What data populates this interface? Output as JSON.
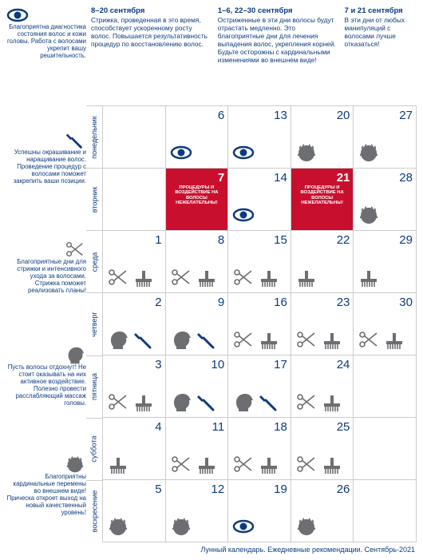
{
  "colors": {
    "primary": "#0b3b7e",
    "red": "#c8102e",
    "iconGray": "#6d6e71",
    "border": "#cccccc"
  },
  "headerNotes": [
    {
      "title": "8–20 сентября",
      "body": "Стрижка, проведенная в это время, способствует ускоренному росту волос. Повышается результативность процедур по восстановлению волос."
    },
    {
      "title": "1–6, 22–30 сентября",
      "body": "Остриженные в эти дни волосы будут отрастать медленно. Это благоприятные дни для лечения выпадения волос, укрепления корней. Будьте осторожны с кардинальными изменениями во внешнем виде!"
    },
    {
      "title": "7 и 21 сентября",
      "body": "В эти дни от любых манипуляций с волосами лучше отказаться!"
    }
  ],
  "legends": [
    {
      "icon": "eye",
      "text": "Благоприятна диагностика состояния волос и кожи головы. Работа с волосами укрепит вашу решительность."
    },
    {
      "icon": "brush",
      "text": "Успешны окрашивание и наращивание волос. Проведение процедур с волосами поможет закрепить ваши позиции."
    },
    {
      "icon": "scissors",
      "text": "Благоприятные дни для стрижки и интенсивного ухода за волосами. Стрижка поможет реализовать планы!"
    },
    {
      "icon": "head",
      "text": "Пусть волосы отдохнут! Не стоит оказывать на них активное воздействие. Полезно провести расслабляющий массаж головы."
    },
    {
      "icon": "curly",
      "text": "Благоприятны кардинальные перемены во внешнем виде! Прическа откроет выход на новый качественный уровень!"
    }
  ],
  "dayLabels": [
    "понедельник",
    "вторник",
    "среда",
    "четверг",
    "пятница",
    "суббота",
    "воскресение"
  ],
  "redText": "ПРОЦЕДУРЫ И ВОЗДЕЙСТВИЕ НА ВОЛОСЫ НЕЖЕЛАТЕЛЬНЫ!",
  "calendar": [
    [
      {
        "num": "",
        "icons": []
      },
      {
        "num": "6",
        "icons": [
          "eye"
        ]
      },
      {
        "num": "13",
        "icons": [
          "eye"
        ]
      },
      {
        "num": "20",
        "icons": [
          "curly"
        ]
      },
      {
        "num": "27",
        "icons": [
          "curly"
        ]
      }
    ],
    [
      {
        "num": "",
        "icons": []
      },
      {
        "num": "7",
        "red": true
      },
      {
        "num": "14",
        "icons": [
          "eye"
        ]
      },
      {
        "num": "21",
        "red": true
      },
      {
        "num": "28",
        "icons": [
          "curly"
        ]
      }
    ],
    [
      {
        "num": "1",
        "icons": [
          "scissors",
          "comb"
        ]
      },
      {
        "num": "8",
        "icons": [
          "scissors",
          "comb"
        ]
      },
      {
        "num": "15",
        "icons": [
          "scissors",
          "comb"
        ]
      },
      {
        "num": "22",
        "icons": [
          "comb"
        ]
      },
      {
        "num": "29",
        "icons": [
          "comb"
        ]
      }
    ],
    [
      {
        "num": "2",
        "icons": [
          "head",
          "brush"
        ]
      },
      {
        "num": "9",
        "icons": [
          "head",
          "brush"
        ]
      },
      {
        "num": "16",
        "icons": [
          "scissors",
          "comb"
        ]
      },
      {
        "num": "23",
        "icons": [
          "scissors",
          "comb"
        ]
      },
      {
        "num": "30",
        "icons": [
          "scissors",
          "comb"
        ]
      }
    ],
    [
      {
        "num": "3",
        "icons": [
          "scissors",
          "comb"
        ]
      },
      {
        "num": "10",
        "icons": [
          "head",
          "brush"
        ]
      },
      {
        "num": "17",
        "icons": [
          "head",
          "brush"
        ]
      },
      {
        "num": "24",
        "icons": [
          "scissors",
          "comb"
        ]
      },
      {
        "num": "",
        "icons": []
      }
    ],
    [
      {
        "num": "4",
        "icons": [
          "comb"
        ]
      },
      {
        "num": "11",
        "icons": [
          "scissors",
          "comb"
        ]
      },
      {
        "num": "18",
        "icons": [
          "scissors",
          "comb"
        ]
      },
      {
        "num": "25",
        "icons": [
          "scissors",
          "comb"
        ]
      },
      {
        "num": "",
        "icons": []
      }
    ],
    [
      {
        "num": "5",
        "icons": [
          "curly"
        ]
      },
      {
        "num": "12",
        "icons": [
          "curly"
        ]
      },
      {
        "num": "19",
        "icons": [
          "eye"
        ]
      },
      {
        "num": "26",
        "icons": [
          "curly"
        ]
      },
      {
        "num": "",
        "icons": []
      }
    ]
  ],
  "footer": "Лунный календарь. Ежедневные рекомендации. Сентябрь-2021"
}
